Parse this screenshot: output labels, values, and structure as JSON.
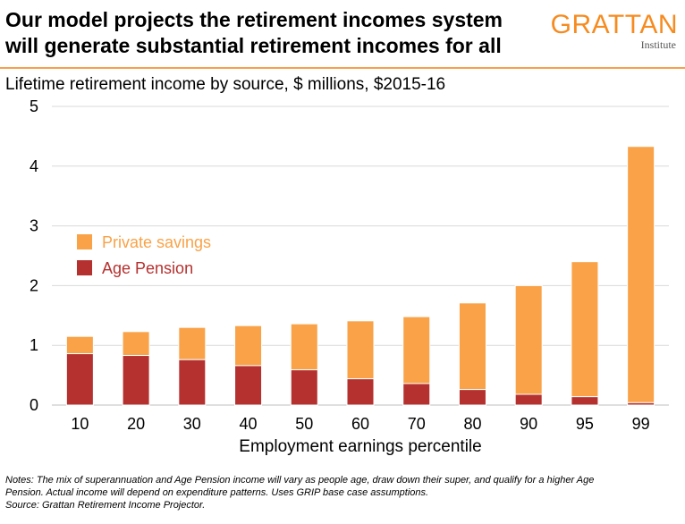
{
  "header": {
    "title_line1": "Our model projects the retirement incomes system",
    "title_line2": "will generate substantial retirement incomes for all",
    "logo_main": "GRATTAN",
    "logo_sub": "Institute"
  },
  "colors": {
    "private_savings": "#f9a247",
    "age_pension": "#b5312f",
    "grid": "#d9d9d9",
    "accent_rule": "#f6a04d",
    "logo": "#f68b1f"
  },
  "chart_data": {
    "type": "bar",
    "stacked": true,
    "subtitle": "Lifetime retirement income by source, $ millions, $2015-16",
    "xlabel": "Employment earnings percentile",
    "ylabel": "",
    "categories": [
      "10",
      "20",
      "30",
      "40",
      "50",
      "60",
      "70",
      "80",
      "90",
      "95",
      "99"
    ],
    "ylim": [
      0,
      5
    ],
    "yticks": [
      "0",
      "1",
      "2",
      "3",
      "4",
      "5"
    ],
    "grid": "horizontal",
    "legend_placement": "upper-left",
    "series": [
      {
        "name": "Age Pension",
        "color": "#b5312f",
        "values": [
          0.86,
          0.83,
          0.76,
          0.66,
          0.59,
          0.44,
          0.36,
          0.26,
          0.18,
          0.14,
          0.04
        ]
      },
      {
        "name": "Private savings",
        "color": "#f9a247",
        "values": [
          0.29,
          0.4,
          0.54,
          0.67,
          0.77,
          0.97,
          1.12,
          1.45,
          1.82,
          2.26,
          4.29
        ]
      }
    ]
  },
  "notes": {
    "line1": "Notes: The mix of superannuation and Age Pension income will vary as people age, draw down their super, and qualify for a higher Age",
    "line2": "Pension. Actual income will depend on expenditure patterns. Uses GRIP base case assumptions.",
    "line3": "Source: Grattan Retirement Income Projector."
  }
}
